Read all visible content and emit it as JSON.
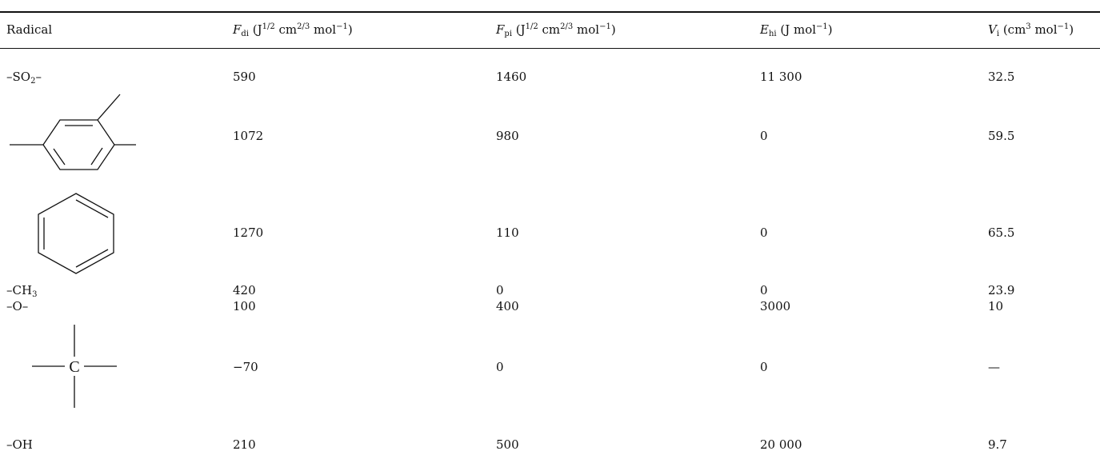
{
  "table": {
    "headers": {
      "radical": "Radical",
      "fdi": {
        "sym": "F",
        "sub": "di",
        "unit_pre": " (J",
        "exp1": "1/2",
        "mid": " cm",
        "exp2": "2/3",
        "tail": " mol",
        "exp3": "−1",
        "close": ")"
      },
      "fpi": {
        "sym": "F",
        "sub": "pi",
        "unit_pre": " (J",
        "exp1": "1/2",
        "mid": " cm",
        "exp2": "2/3",
        "tail": " mol",
        "exp3": "−1",
        "close": ")"
      },
      "ehi": {
        "sym": "E",
        "sub": "hi",
        "unit_pre": " (J mol",
        "exp1": "−1",
        "close": ")"
      },
      "vi": {
        "sym": "V",
        "sub": "i",
        "unit_pre": " (cm",
        "exp1": "3",
        "mid": " mol",
        "exp2": "−1",
        "close": ")"
      }
    },
    "rows": [
      {
        "radical": {
          "pre": "–SO",
          "sub": "2",
          "post": "–"
        },
        "fdi": "590",
        "fpi": "1460",
        "ehi": "11 300",
        "vi": "32.5"
      },
      {
        "radical_icon": "trisubstituted-benzene-structure",
        "fdi": "1072",
        "fpi": "980",
        "ehi": "0",
        "vi": "59.5"
      },
      {
        "radical_icon": "benzene-ring-structure",
        "fdi": "1270",
        "fpi": "110",
        "ehi": "0",
        "vi": "65.5"
      },
      {
        "radical": {
          "pre": "–CH",
          "sub": "3",
          "post": ""
        },
        "fdi": "420",
        "fpi": "0",
        "ehi": "0",
        "vi": "23.9"
      },
      {
        "radical": {
          "pre": "–O–",
          "sub": "",
          "post": ""
        },
        "fdi": "100",
        "fpi": "400",
        "ehi": "3000",
        "vi": "10"
      },
      {
        "radical_icon": "quaternary-carbon-structure",
        "radical_label": "C",
        "fdi": "−70",
        "fpi": "0",
        "ehi": "0",
        "vi": "—"
      },
      {
        "radical": {
          "pre": "–OH",
          "sub": "",
          "post": ""
        },
        "fdi": "210",
        "fpi": "500",
        "ehi": "20 000",
        "vi": "9.7"
      }
    ]
  }
}
